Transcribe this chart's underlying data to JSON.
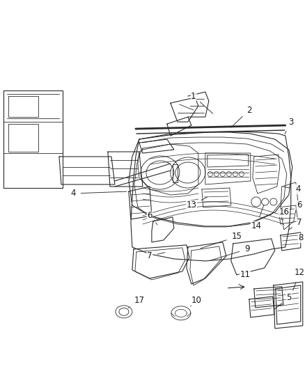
{
  "bg_color": "#ffffff",
  "fig_width": 4.38,
  "fig_height": 5.33,
  "dpi": 100,
  "line_color": "#2a2a2a",
  "label_fontsize": 8.5,
  "label_color": "#1a1a1a",
  "labels": [
    {
      "num": "1",
      "xt": 0.53,
      "yt": 0.845,
      "xp": 0.395,
      "yp": 0.805
    },
    {
      "num": "2",
      "xt": 0.62,
      "yt": 0.815,
      "xp": 0.5,
      "yp": 0.78
    },
    {
      "num": "3",
      "xt": 0.88,
      "yt": 0.775,
      "xp": 0.82,
      "yp": 0.748
    },
    {
      "num": "4",
      "xt": 0.105,
      "yt": 0.64,
      "xp": 0.185,
      "yp": 0.636
    },
    {
      "num": "4",
      "xt": 0.875,
      "yt": 0.648,
      "xp": 0.8,
      "yp": 0.64
    },
    {
      "num": "5",
      "xt": 0.68,
      "yt": 0.415,
      "xp": 0.66,
      "yp": 0.445
    },
    {
      "num": "6",
      "xt": 0.23,
      "yt": 0.553,
      "xp": 0.27,
      "yp": 0.567
    },
    {
      "num": "6",
      "xt": 0.88,
      "yt": 0.578,
      "xp": 0.848,
      "yp": 0.59
    },
    {
      "num": "7",
      "xt": 0.245,
      "yt": 0.503,
      "xp": 0.278,
      "yp": 0.525
    },
    {
      "num": "7",
      "xt": 0.875,
      "yt": 0.515,
      "xp": 0.84,
      "yp": 0.53
    },
    {
      "num": "8",
      "xt": 0.875,
      "yt": 0.488,
      "xp": 0.84,
      "yp": 0.5
    },
    {
      "num": "9",
      "xt": 0.39,
      "yt": 0.517,
      "xp": 0.403,
      "yp": 0.535
    },
    {
      "num": "10",
      "xt": 0.35,
      "yt": 0.408,
      "xp": 0.34,
      "yp": 0.435
    },
    {
      "num": "11",
      "xt": 0.51,
      "yt": 0.38,
      "xp": 0.49,
      "yp": 0.402
    },
    {
      "num": "12",
      "xt": 0.858,
      "yt": 0.39,
      "xp": 0.806,
      "yp": 0.42
    },
    {
      "num": "13",
      "xt": 0.318,
      "yt": 0.6,
      "xp": 0.325,
      "yp": 0.615
    },
    {
      "num": "14",
      "xt": 0.403,
      "yt": 0.563,
      "xp": 0.395,
      "yp": 0.573
    },
    {
      "num": "15",
      "xt": 0.375,
      "yt": 0.543,
      "xp": 0.378,
      "yp": 0.555
    },
    {
      "num": "16",
      "xt": 0.53,
      "yt": 0.565,
      "xp": 0.52,
      "yp": 0.578
    },
    {
      "num": "17",
      "xt": 0.248,
      "yt": 0.388,
      "xp": 0.258,
      "yp": 0.418
    }
  ]
}
